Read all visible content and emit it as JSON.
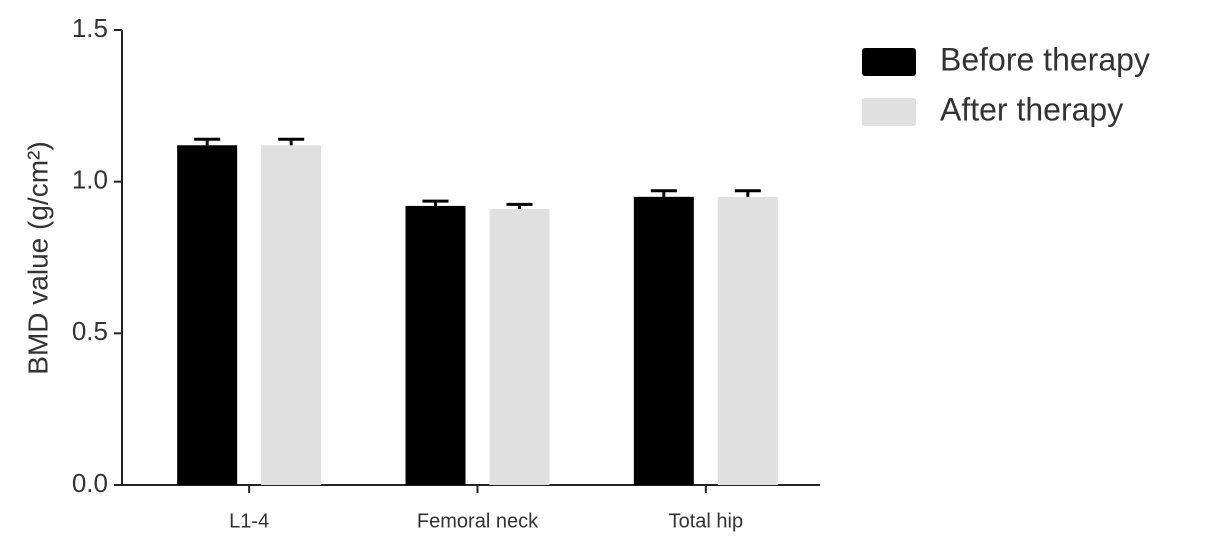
{
  "chart_data": {
    "type": "bar",
    "y_label": "BMD value (g/cm²)",
    "categories": [
      "L1-4",
      "Femoral neck",
      "Total hip"
    ],
    "series": [
      {
        "name": "Before therapy",
        "color": "#000000",
        "values": [
          1.12,
          0.92,
          0.95
        ],
        "errors": [
          0.02,
          0.016,
          0.02
        ]
      },
      {
        "name": "After therapy",
        "color": "#e0e0e0",
        "values": [
          1.12,
          0.91,
          0.95
        ],
        "errors": [
          0.02,
          0.015,
          0.02
        ]
      }
    ],
    "ylim": [
      0,
      1.5
    ],
    "yticks": [
      {
        "value": 0,
        "label": "0.0"
      },
      0.5,
      {
        "value": 1,
        "label": "1.0"
      },
      1.5
    ],
    "legend": "top-right"
  }
}
